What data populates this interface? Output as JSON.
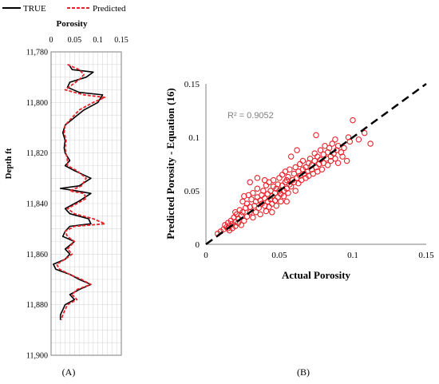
{
  "colors": {
    "true": "#000000",
    "predicted": "#e8232a",
    "grid": "#d9d9d9",
    "axis": "#7f7f7f",
    "fit": "#000000"
  },
  "chart_data": [
    {
      "panel_label": "(A)",
      "type": "line",
      "orientation": "depth-log",
      "xlabel": "Porosity",
      "ylabel": "Depth ft",
      "x_axis_position": "top",
      "y_reversed": true,
      "xlim": [
        0,
        0.15
      ],
      "ylim": [
        11780,
        11900
      ],
      "x_ticks": [
        "0",
        "0.05",
        "0.1",
        "0.15"
      ],
      "y_ticks": [
        "11,780",
        "11,800",
        "11,820",
        "11,840",
        "11,860",
        "11,880",
        "11,900"
      ],
      "grid": true,
      "legend": {
        "placement": "top",
        "entries": [
          "TRUE",
          "Predicted"
        ]
      },
      "series": [
        {
          "name": "TRUE",
          "style": "solid",
          "points": [
            [
              0.038,
              11785
            ],
            [
              0.045,
              11787
            ],
            [
              0.09,
              11788
            ],
            [
              0.075,
              11790
            ],
            [
              0.04,
              11792
            ],
            [
              0.035,
              11794
            ],
            [
              0.06,
              11796
            ],
            [
              0.11,
              11797
            ],
            [
              0.1,
              11800
            ],
            [
              0.07,
              11803
            ],
            [
              0.05,
              11806
            ],
            [
              0.03,
              11809
            ],
            [
              0.025,
              11812
            ],
            [
              0.03,
              11815
            ],
            [
              0.028,
              11818
            ],
            [
              0.03,
              11820
            ],
            [
              0.04,
              11823
            ],
            [
              0.03,
              11825
            ],
            [
              0.05,
              11827
            ],
            [
              0.085,
              11830
            ],
            [
              0.06,
              11833
            ],
            [
              0.02,
              11834
            ],
            [
              0.055,
              11835
            ],
            [
              0.085,
              11836
            ],
            [
              0.06,
              11839
            ],
            [
              0.03,
              11842
            ],
            [
              0.04,
              11844
            ],
            [
              0.08,
              11846
            ],
            [
              0.085,
              11848
            ],
            [
              0.04,
              11849
            ],
            [
              0.03,
              11851
            ],
            [
              0.025,
              11853
            ],
            [
              0.05,
              11855
            ],
            [
              0.03,
              11858
            ],
            [
              0.04,
              11860
            ],
            [
              0.03,
              11862
            ],
            [
              0.005,
              11864
            ],
            [
              0.01,
              11866
            ],
            [
              0.04,
              11868
            ],
            [
              0.06,
              11870
            ],
            [
              0.085,
              11872
            ],
            [
              0.06,
              11874
            ],
            [
              0.04,
              11876
            ],
            [
              0.05,
              11878
            ],
            [
              0.03,
              11880
            ],
            [
              0.025,
              11882
            ],
            [
              0.02,
              11884
            ],
            [
              0.02,
              11886
            ]
          ]
        },
        {
          "name": "Predicted",
          "style": "dashed",
          "points": [
            [
              0.035,
              11785
            ],
            [
              0.06,
              11787
            ],
            [
              0.07,
              11789
            ],
            [
              0.06,
              11791
            ],
            [
              0.045,
              11793
            ],
            [
              0.03,
              11795
            ],
            [
              0.07,
              11797
            ],
            [
              0.115,
              11798
            ],
            [
              0.09,
              11800
            ],
            [
              0.06,
              11803
            ],
            [
              0.045,
              11806
            ],
            [
              0.03,
              11809
            ],
            [
              0.028,
              11812
            ],
            [
              0.032,
              11815
            ],
            [
              0.03,
              11818
            ],
            [
              0.032,
              11820
            ],
            [
              0.035,
              11823
            ],
            [
              0.035,
              11825
            ],
            [
              0.055,
              11827
            ],
            [
              0.075,
              11830
            ],
            [
              0.065,
              11833
            ],
            [
              0.04,
              11835
            ],
            [
              0.07,
              11836
            ],
            [
              0.075,
              11838
            ],
            [
              0.055,
              11840
            ],
            [
              0.035,
              11842
            ],
            [
              0.05,
              11844
            ],
            [
              0.09,
              11846
            ],
            [
              0.115,
              11848
            ],
            [
              0.05,
              11849
            ],
            [
              0.03,
              11851
            ],
            [
              0.035,
              11853
            ],
            [
              0.05,
              11855
            ],
            [
              0.035,
              11858
            ],
            [
              0.045,
              11860
            ],
            [
              0.03,
              11862
            ],
            [
              0.012,
              11864
            ],
            [
              0.018,
              11866
            ],
            [
              0.04,
              11868
            ],
            [
              0.065,
              11870
            ],
            [
              0.085,
              11872
            ],
            [
              0.055,
              11874
            ],
            [
              0.045,
              11876
            ],
            [
              0.055,
              11878
            ],
            [
              0.035,
              11880
            ],
            [
              0.03,
              11882
            ],
            [
              0.025,
              11884
            ],
            [
              0.022,
              11886
            ]
          ]
        }
      ]
    },
    {
      "panel_label": "(B)",
      "type": "scatter",
      "xlabel": "Actual Porosity",
      "ylabel": "Predicted Porosity - Equation (16)",
      "xlim": [
        0,
        0.15
      ],
      "ylim": [
        0,
        0.15
      ],
      "x_ticks": [
        "0",
        "0.05",
        "0.1",
        "0.15"
      ],
      "y_ticks": [
        "0",
        "0.05",
        "0.1",
        "0.15"
      ],
      "grid": false,
      "annotation": "R² = 0.9052",
      "fit_line": {
        "style": "dashed",
        "points": [
          [
            0,
            0
          ],
          [
            0.15,
            0.15
          ]
        ]
      },
      "points": [
        [
          0.008,
          0.01
        ],
        [
          0.01,
          0.012
        ],
        [
          0.012,
          0.014
        ],
        [
          0.013,
          0.018
        ],
        [
          0.014,
          0.016
        ],
        [
          0.015,
          0.015
        ],
        [
          0.015,
          0.02
        ],
        [
          0.016,
          0.013
        ],
        [
          0.016,
          0.017
        ],
        [
          0.017,
          0.022
        ],
        [
          0.018,
          0.015
        ],
        [
          0.018,
          0.019
        ],
        [
          0.019,
          0.025
        ],
        [
          0.02,
          0.017
        ],
        [
          0.02,
          0.021
        ],
        [
          0.021,
          0.028
        ],
        [
          0.022,
          0.02
        ],
        [
          0.022,
          0.024
        ],
        [
          0.023,
          0.032
        ],
        [
          0.024,
          0.018
        ],
        [
          0.024,
          0.027
        ],
        [
          0.025,
          0.04
        ],
        [
          0.025,
          0.03
        ],
        [
          0.026,
          0.022
        ],
        [
          0.026,
          0.045
        ],
        [
          0.027,
          0.034
        ],
        [
          0.028,
          0.026
        ],
        [
          0.028,
          0.038
        ],
        [
          0.029,
          0.046
        ],
        [
          0.03,
          0.03
        ],
        [
          0.03,
          0.035
        ],
        [
          0.031,
          0.042
        ],
        [
          0.032,
          0.025
        ],
        [
          0.032,
          0.048
        ],
        [
          0.033,
          0.036
        ],
        [
          0.034,
          0.04
        ],
        [
          0.034,
          0.03
        ],
        [
          0.035,
          0.044
        ],
        [
          0.035,
          0.052
        ],
        [
          0.036,
          0.034
        ],
        [
          0.037,
          0.041
        ],
        [
          0.037,
          0.028
        ],
        [
          0.038,
          0.046
        ],
        [
          0.038,
          0.038
        ],
        [
          0.039,
          0.05
        ],
        [
          0.04,
          0.036
        ],
        [
          0.04,
          0.043
        ],
        [
          0.041,
          0.031
        ],
        [
          0.041,
          0.055
        ],
        [
          0.042,
          0.04
        ],
        [
          0.042,
          0.047
        ],
        [
          0.043,
          0.035
        ],
        [
          0.043,
          0.058
        ],
        [
          0.044,
          0.042
        ],
        [
          0.044,
          0.05
        ],
        [
          0.045,
          0.038
        ],
        [
          0.045,
          0.045
        ],
        [
          0.046,
          0.054
        ],
        [
          0.046,
          0.06
        ],
        [
          0.047,
          0.041
        ],
        [
          0.047,
          0.048
        ],
        [
          0.048,
          0.052
        ],
        [
          0.048,
          0.036
        ],
        [
          0.049,
          0.056
        ],
        [
          0.049,
          0.044
        ],
        [
          0.05,
          0.05
        ],
        [
          0.05,
          0.062
        ],
        [
          0.051,
          0.047
        ],
        [
          0.051,
          0.04
        ],
        [
          0.052,
          0.055
        ],
        [
          0.052,
          0.065
        ],
        [
          0.053,
          0.05
        ],
        [
          0.053,
          0.045
        ],
        [
          0.054,
          0.058
        ],
        [
          0.054,
          0.068
        ],
        [
          0.055,
          0.052
        ],
        [
          0.055,
          0.06
        ],
        [
          0.056,
          0.048
        ],
        [
          0.056,
          0.063
        ],
        [
          0.057,
          0.056
        ],
        [
          0.057,
          0.07
        ],
        [
          0.058,
          0.054
        ],
        [
          0.058,
          0.082
        ],
        [
          0.059,
          0.06
        ],
        [
          0.06,
          0.058
        ],
        [
          0.06,
          0.066
        ],
        [
          0.061,
          0.05
        ],
        [
          0.061,
          0.072
        ],
        [
          0.062,
          0.062
        ],
        [
          0.063,
          0.057
        ],
        [
          0.063,
          0.068
        ],
        [
          0.064,
          0.064
        ],
        [
          0.064,
          0.075
        ],
        [
          0.065,
          0.06
        ],
        [
          0.066,
          0.07
        ],
        [
          0.066,
          0.078
        ],
        [
          0.067,
          0.066
        ],
        [
          0.068,
          0.062
        ],
        [
          0.068,
          0.072
        ],
        [
          0.069,
          0.068
        ],
        [
          0.07,
          0.076
        ],
        [
          0.07,
          0.064
        ],
        [
          0.071,
          0.08
        ],
        [
          0.072,
          0.07
        ],
        [
          0.072,
          0.074
        ],
        [
          0.073,
          0.066
        ],
        [
          0.074,
          0.078
        ],
        [
          0.074,
          0.085
        ],
        [
          0.075,
          0.072
        ],
        [
          0.076,
          0.068
        ],
        [
          0.076,
          0.082
        ],
        [
          0.077,
          0.075
        ],
        [
          0.078,
          0.088
        ],
        [
          0.078,
          0.079
        ],
        [
          0.079,
          0.07
        ],
        [
          0.08,
          0.084
        ],
        [
          0.08,
          0.076
        ],
        [
          0.081,
          0.092
        ],
        [
          0.082,
          0.08
        ],
        [
          0.083,
          0.086
        ],
        [
          0.083,
          0.074
        ],
        [
          0.084,
          0.09
        ],
        [
          0.085,
          0.082
        ],
        [
          0.085,
          0.078
        ],
        [
          0.086,
          0.094
        ],
        [
          0.087,
          0.085
        ],
        [
          0.088,
          0.08
        ],
        [
          0.088,
          0.098
        ],
        [
          0.089,
          0.088
        ],
        [
          0.09,
          0.076
        ],
        [
          0.09,
          0.092
        ],
        [
          0.092,
          0.086
        ],
        [
          0.093,
          0.082
        ],
        [
          0.094,
          0.09
        ],
        [
          0.096,
          0.078
        ],
        [
          0.097,
          0.1
        ],
        [
          0.098,
          0.096
        ],
        [
          0.1,
          0.116
        ],
        [
          0.104,
          0.098
        ],
        [
          0.108,
          0.104
        ],
        [
          0.112,
          0.094
        ],
        [
          0.035,
          0.062
        ],
        [
          0.03,
          0.058
        ],
        [
          0.04,
          0.06
        ],
        [
          0.062,
          0.088
        ],
        [
          0.075,
          0.102
        ],
        [
          0.02,
          0.03
        ],
        [
          0.045,
          0.03
        ],
        [
          0.055,
          0.04
        ]
      ]
    }
  ]
}
